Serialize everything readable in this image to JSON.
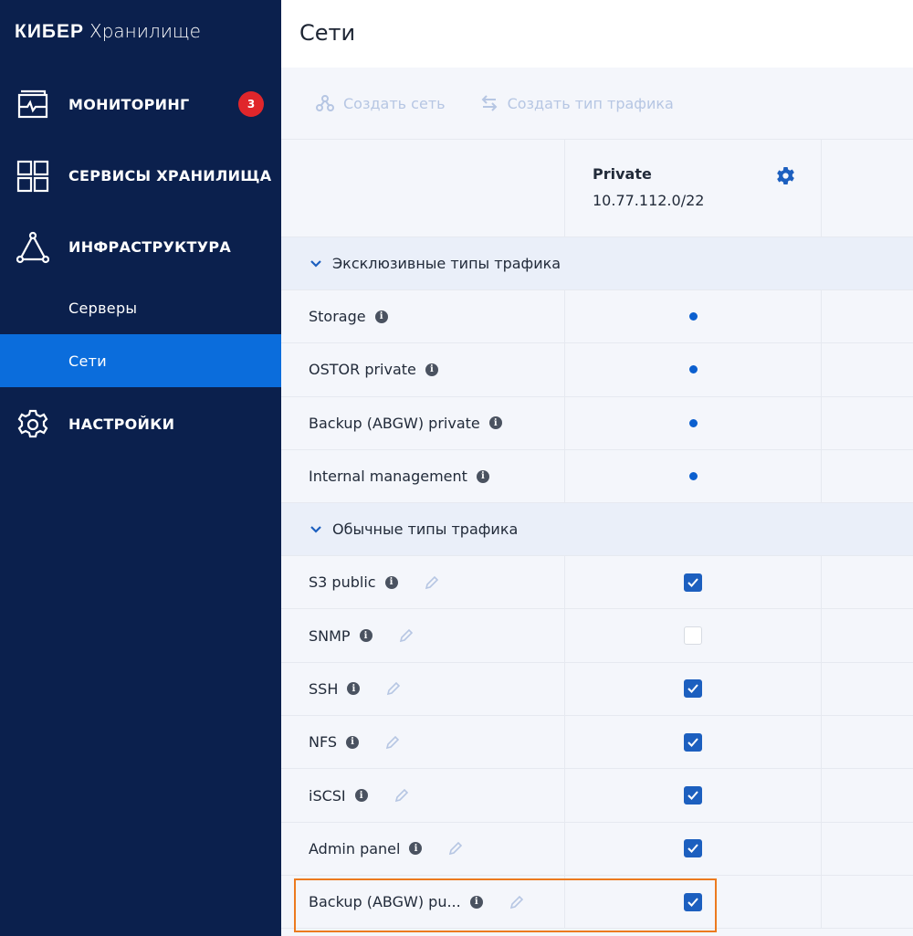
{
  "sidebar": {
    "logo_bold": "КИБЕР",
    "logo_light": "Хранилище",
    "items": [
      {
        "label": "МОНИТОРИНГ",
        "icon": "monitor-icon",
        "badge": "3"
      },
      {
        "label": "СЕРВИСЫ ХРАНИЛИЩА",
        "icon": "grid-icon"
      },
      {
        "label": "ИНФРАСТРУКТУРА",
        "icon": "triangle-nodes-icon"
      },
      {
        "label": "Серверы"
      },
      {
        "label": "Сети",
        "active": true
      },
      {
        "label": "НАСТРОЙКИ",
        "icon": "gear-icon"
      }
    ]
  },
  "header": {
    "title": "Сети"
  },
  "toolbar": {
    "create_network": "Создать сеть",
    "create_traffic_type": "Создать тип трафика"
  },
  "network": {
    "name": "Private",
    "cidr": "10.77.112.0/22"
  },
  "sections": [
    {
      "title": "Эксклюзивные типы трафика",
      "rows": [
        {
          "name": "Storage",
          "assigned": true
        },
        {
          "name": "OSTOR private",
          "assigned": true
        },
        {
          "name": "Backup (ABGW) private",
          "assigned": true
        },
        {
          "name": "Internal management",
          "assigned": true
        }
      ]
    },
    {
      "title": "Обычные типы трафика",
      "rows": [
        {
          "name": "S3 public",
          "checked": true
        },
        {
          "name": "SNMP",
          "checked": false
        },
        {
          "name": "SSH",
          "checked": true
        },
        {
          "name": "NFS",
          "checked": true
        },
        {
          "name": "iSCSI",
          "checked": true
        },
        {
          "name": "Admin panel",
          "checked": true
        },
        {
          "name": "Backup (ABGW) pu...",
          "checked": true,
          "highlighted": true
        }
      ]
    }
  ],
  "colors": {
    "sidebar": "#0b204d",
    "active": "#0b6ddc",
    "accent": "#1c5fbf",
    "badge": "#e0262b",
    "highlight": "#ec7a1f"
  }
}
